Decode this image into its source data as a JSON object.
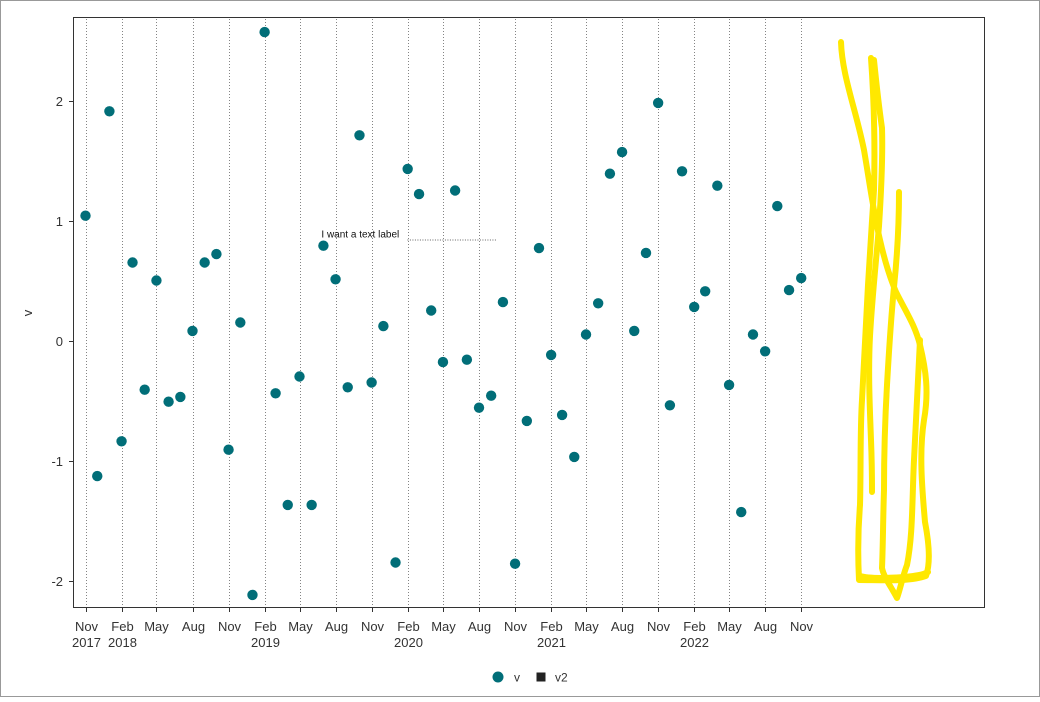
{
  "chart_data": {
    "type": "scatter",
    "xlabel": "",
    "ylabel": "v",
    "xlim": [
      "2017-10-25",
      "2023-03-01"
    ],
    "ylim": [
      -2.2,
      2.6
    ],
    "y_ticks": [
      -2,
      -1,
      0,
      1,
      2
    ],
    "x_ticks": [
      {
        "date": "2017-11-01",
        "month": "Nov",
        "year": "2017"
      },
      {
        "date": "2018-02-01",
        "month": "Feb",
        "year": "2018"
      },
      {
        "date": "2018-05-01",
        "month": "May",
        "year": ""
      },
      {
        "date": "2018-08-01",
        "month": "Aug",
        "year": ""
      },
      {
        "date": "2018-11-01",
        "month": "Nov",
        "year": ""
      },
      {
        "date": "2019-02-01",
        "month": "Feb",
        "year": "2019"
      },
      {
        "date": "2019-05-01",
        "month": "May",
        "year": ""
      },
      {
        "date": "2019-08-01",
        "month": "Aug",
        "year": ""
      },
      {
        "date": "2019-11-01",
        "month": "Nov",
        "year": ""
      },
      {
        "date": "2020-02-01",
        "month": "Feb",
        "year": "2020"
      },
      {
        "date": "2020-05-01",
        "month": "May",
        "year": ""
      },
      {
        "date": "2020-08-01",
        "month": "Aug",
        "year": ""
      },
      {
        "date": "2020-11-01",
        "month": "Nov",
        "year": ""
      },
      {
        "date": "2021-02-01",
        "month": "Feb",
        "year": "2021"
      },
      {
        "date": "2021-05-01",
        "month": "May",
        "year": ""
      },
      {
        "date": "2021-08-01",
        "month": "Aug",
        "year": ""
      },
      {
        "date": "2021-11-01",
        "month": "Nov",
        "year": ""
      },
      {
        "date": "2022-02-01",
        "month": "Feb",
        "year": "2022"
      },
      {
        "date": "2022-05-01",
        "month": "May",
        "year": ""
      },
      {
        "date": "2022-08-01",
        "month": "Aug",
        "year": ""
      },
      {
        "date": "2022-11-01",
        "month": "Nov",
        "year": ""
      }
    ],
    "grid": {
      "vertical": "dotted",
      "horizontal": "none"
    },
    "series": [
      {
        "name": "v",
        "marker": "circle",
        "color": "#016e78",
        "points": [
          {
            "x": "2017-11-01",
            "y": 1.04
          },
          {
            "x": "2017-12-01",
            "y": -1.13
          },
          {
            "x": "2018-01-01",
            "y": 1.91
          },
          {
            "x": "2018-02-01",
            "y": -0.84
          },
          {
            "x": "2018-03-01",
            "y": 0.65
          },
          {
            "x": "2018-04-01",
            "y": -0.41
          },
          {
            "x": "2018-05-01",
            "y": 0.5
          },
          {
            "x": "2018-06-01",
            "y": -0.51
          },
          {
            "x": "2018-07-01",
            "y": -0.47
          },
          {
            "x": "2018-08-01",
            "y": 0.08
          },
          {
            "x": "2018-09-01",
            "y": 0.65
          },
          {
            "x": "2018-10-01",
            "y": 0.72
          },
          {
            "x": "2018-11-01",
            "y": -0.91
          },
          {
            "x": "2018-12-01",
            "y": 0.15
          },
          {
            "x": "2019-01-01",
            "y": -2.12
          },
          {
            "x": "2019-02-01",
            "y": 2.57
          },
          {
            "x": "2019-03-01",
            "y": -0.44
          },
          {
            "x": "2019-04-01",
            "y": -1.37
          },
          {
            "x": "2019-05-01",
            "y": -0.3
          },
          {
            "x": "2019-06-01",
            "y": -1.37
          },
          {
            "x": "2019-07-01",
            "y": 0.79
          },
          {
            "x": "2019-08-01",
            "y": 0.51
          },
          {
            "x": "2019-09-01",
            "y": -0.39
          },
          {
            "x": "2019-10-01",
            "y": 1.71
          },
          {
            "x": "2019-11-01",
            "y": -0.35
          },
          {
            "x": "2019-12-01",
            "y": 0.12
          },
          {
            "x": "2020-01-01",
            "y": -1.85
          },
          {
            "x": "2020-02-01",
            "y": 1.43
          },
          {
            "x": "2020-03-01",
            "y": 1.22
          },
          {
            "x": "2020-04-01",
            "y": 0.25
          },
          {
            "x": "2020-05-01",
            "y": -0.18
          },
          {
            "x": "2020-06-01",
            "y": 1.25
          },
          {
            "x": "2020-07-01",
            "y": -0.16
          },
          {
            "x": "2020-08-01",
            "y": -0.56
          },
          {
            "x": "2020-09-01",
            "y": -0.46
          },
          {
            "x": "2020-10-01",
            "y": 0.32
          },
          {
            "x": "2020-11-01",
            "y": -1.86
          },
          {
            "x": "2020-12-01",
            "y": -0.67
          },
          {
            "x": "2021-01-01",
            "y": 0.77
          },
          {
            "x": "2021-02-01",
            "y": -0.12
          },
          {
            "x": "2021-03-01",
            "y": -0.62
          },
          {
            "x": "2021-04-01",
            "y": -0.97
          },
          {
            "x": "2021-05-01",
            "y": 0.05
          },
          {
            "x": "2021-06-01",
            "y": 0.31
          },
          {
            "x": "2021-07-01",
            "y": 1.39
          },
          {
            "x": "2021-08-01",
            "y": 1.57
          },
          {
            "x": "2021-09-01",
            "y": 0.08
          },
          {
            "x": "2021-10-01",
            "y": 0.73
          },
          {
            "x": "2021-11-01",
            "y": 1.98
          },
          {
            "x": "2021-12-01",
            "y": -0.54
          },
          {
            "x": "2022-01-01",
            "y": 1.41
          },
          {
            "x": "2022-02-01",
            "y": 0.28
          },
          {
            "x": "2022-03-01",
            "y": 0.41
          },
          {
            "x": "2022-04-01",
            "y": 1.29
          },
          {
            "x": "2022-05-01",
            "y": -0.37
          },
          {
            "x": "2022-06-01",
            "y": -1.43
          },
          {
            "x": "2022-07-01",
            "y": 0.05
          },
          {
            "x": "2022-08-01",
            "y": -0.09
          },
          {
            "x": "2022-09-01",
            "y": 1.12
          },
          {
            "x": "2022-10-01",
            "y": 0.42
          },
          {
            "x": "2022-11-01",
            "y": 0.52
          }
        ]
      },
      {
        "name": "v2",
        "marker": "square",
        "color": "#222222",
        "points": []
      }
    ],
    "annotations": [
      {
        "text": "I want a text label",
        "x": "2019-07-01",
        "y": 0.85,
        "leader_to_x": "2020-09-15"
      }
    ],
    "legend": {
      "placement": "bottom-center"
    },
    "highlight_color": "#ffe800"
  }
}
